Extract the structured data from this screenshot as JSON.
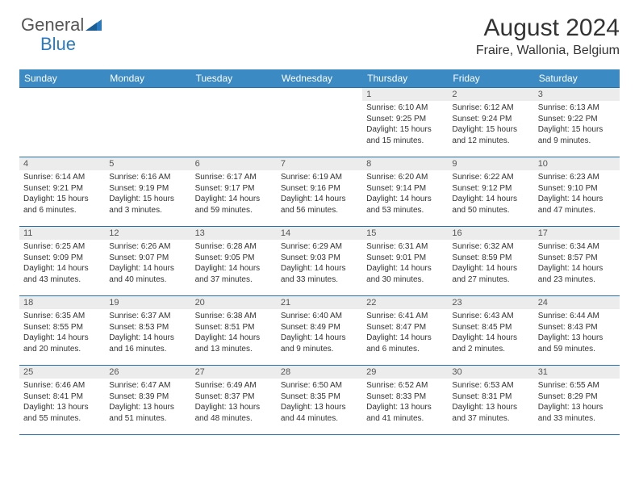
{
  "logo": {
    "part1": "General",
    "part2": "Blue"
  },
  "title": "August 2024",
  "subtitle": "Fraire, Wallonia, Belgium",
  "colors": {
    "header_bg": "#3b8ac4",
    "header_text": "#ffffff",
    "row_border": "#2a6fa8",
    "daynum_bg": "#ececec",
    "logo_gray": "#555555",
    "logo_blue": "#2a7ac0"
  },
  "weekdays": [
    "Sunday",
    "Monday",
    "Tuesday",
    "Wednesday",
    "Thursday",
    "Friday",
    "Saturday"
  ],
  "grid": [
    [
      {
        "empty": true
      },
      {
        "empty": true
      },
      {
        "empty": true
      },
      {
        "empty": true
      },
      {
        "n": "1",
        "sr": "Sunrise: 6:10 AM",
        "ss": "Sunset: 9:25 PM",
        "d1": "Daylight: 15 hours",
        "d2": "and 15 minutes."
      },
      {
        "n": "2",
        "sr": "Sunrise: 6:12 AM",
        "ss": "Sunset: 9:24 PM",
        "d1": "Daylight: 15 hours",
        "d2": "and 12 minutes."
      },
      {
        "n": "3",
        "sr": "Sunrise: 6:13 AM",
        "ss": "Sunset: 9:22 PM",
        "d1": "Daylight: 15 hours",
        "d2": "and 9 minutes."
      }
    ],
    [
      {
        "n": "4",
        "sr": "Sunrise: 6:14 AM",
        "ss": "Sunset: 9:21 PM",
        "d1": "Daylight: 15 hours",
        "d2": "and 6 minutes."
      },
      {
        "n": "5",
        "sr": "Sunrise: 6:16 AM",
        "ss": "Sunset: 9:19 PM",
        "d1": "Daylight: 15 hours",
        "d2": "and 3 minutes."
      },
      {
        "n": "6",
        "sr": "Sunrise: 6:17 AM",
        "ss": "Sunset: 9:17 PM",
        "d1": "Daylight: 14 hours",
        "d2": "and 59 minutes."
      },
      {
        "n": "7",
        "sr": "Sunrise: 6:19 AM",
        "ss": "Sunset: 9:16 PM",
        "d1": "Daylight: 14 hours",
        "d2": "and 56 minutes."
      },
      {
        "n": "8",
        "sr": "Sunrise: 6:20 AM",
        "ss": "Sunset: 9:14 PM",
        "d1": "Daylight: 14 hours",
        "d2": "and 53 minutes."
      },
      {
        "n": "9",
        "sr": "Sunrise: 6:22 AM",
        "ss": "Sunset: 9:12 PM",
        "d1": "Daylight: 14 hours",
        "d2": "and 50 minutes."
      },
      {
        "n": "10",
        "sr": "Sunrise: 6:23 AM",
        "ss": "Sunset: 9:10 PM",
        "d1": "Daylight: 14 hours",
        "d2": "and 47 minutes."
      }
    ],
    [
      {
        "n": "11",
        "sr": "Sunrise: 6:25 AM",
        "ss": "Sunset: 9:09 PM",
        "d1": "Daylight: 14 hours",
        "d2": "and 43 minutes."
      },
      {
        "n": "12",
        "sr": "Sunrise: 6:26 AM",
        "ss": "Sunset: 9:07 PM",
        "d1": "Daylight: 14 hours",
        "d2": "and 40 minutes."
      },
      {
        "n": "13",
        "sr": "Sunrise: 6:28 AM",
        "ss": "Sunset: 9:05 PM",
        "d1": "Daylight: 14 hours",
        "d2": "and 37 minutes."
      },
      {
        "n": "14",
        "sr": "Sunrise: 6:29 AM",
        "ss": "Sunset: 9:03 PM",
        "d1": "Daylight: 14 hours",
        "d2": "and 33 minutes."
      },
      {
        "n": "15",
        "sr": "Sunrise: 6:31 AM",
        "ss": "Sunset: 9:01 PM",
        "d1": "Daylight: 14 hours",
        "d2": "and 30 minutes."
      },
      {
        "n": "16",
        "sr": "Sunrise: 6:32 AM",
        "ss": "Sunset: 8:59 PM",
        "d1": "Daylight: 14 hours",
        "d2": "and 27 minutes."
      },
      {
        "n": "17",
        "sr": "Sunrise: 6:34 AM",
        "ss": "Sunset: 8:57 PM",
        "d1": "Daylight: 14 hours",
        "d2": "and 23 minutes."
      }
    ],
    [
      {
        "n": "18",
        "sr": "Sunrise: 6:35 AM",
        "ss": "Sunset: 8:55 PM",
        "d1": "Daylight: 14 hours",
        "d2": "and 20 minutes."
      },
      {
        "n": "19",
        "sr": "Sunrise: 6:37 AM",
        "ss": "Sunset: 8:53 PM",
        "d1": "Daylight: 14 hours",
        "d2": "and 16 minutes."
      },
      {
        "n": "20",
        "sr": "Sunrise: 6:38 AM",
        "ss": "Sunset: 8:51 PM",
        "d1": "Daylight: 14 hours",
        "d2": "and 13 minutes."
      },
      {
        "n": "21",
        "sr": "Sunrise: 6:40 AM",
        "ss": "Sunset: 8:49 PM",
        "d1": "Daylight: 14 hours",
        "d2": "and 9 minutes."
      },
      {
        "n": "22",
        "sr": "Sunrise: 6:41 AM",
        "ss": "Sunset: 8:47 PM",
        "d1": "Daylight: 14 hours",
        "d2": "and 6 minutes."
      },
      {
        "n": "23",
        "sr": "Sunrise: 6:43 AM",
        "ss": "Sunset: 8:45 PM",
        "d1": "Daylight: 14 hours",
        "d2": "and 2 minutes."
      },
      {
        "n": "24",
        "sr": "Sunrise: 6:44 AM",
        "ss": "Sunset: 8:43 PM",
        "d1": "Daylight: 13 hours",
        "d2": "and 59 minutes."
      }
    ],
    [
      {
        "n": "25",
        "sr": "Sunrise: 6:46 AM",
        "ss": "Sunset: 8:41 PM",
        "d1": "Daylight: 13 hours",
        "d2": "and 55 minutes."
      },
      {
        "n": "26",
        "sr": "Sunrise: 6:47 AM",
        "ss": "Sunset: 8:39 PM",
        "d1": "Daylight: 13 hours",
        "d2": "and 51 minutes."
      },
      {
        "n": "27",
        "sr": "Sunrise: 6:49 AM",
        "ss": "Sunset: 8:37 PM",
        "d1": "Daylight: 13 hours",
        "d2": "and 48 minutes."
      },
      {
        "n": "28",
        "sr": "Sunrise: 6:50 AM",
        "ss": "Sunset: 8:35 PM",
        "d1": "Daylight: 13 hours",
        "d2": "and 44 minutes."
      },
      {
        "n": "29",
        "sr": "Sunrise: 6:52 AM",
        "ss": "Sunset: 8:33 PM",
        "d1": "Daylight: 13 hours",
        "d2": "and 41 minutes."
      },
      {
        "n": "30",
        "sr": "Sunrise: 6:53 AM",
        "ss": "Sunset: 8:31 PM",
        "d1": "Daylight: 13 hours",
        "d2": "and 37 minutes."
      },
      {
        "n": "31",
        "sr": "Sunrise: 6:55 AM",
        "ss": "Sunset: 8:29 PM",
        "d1": "Daylight: 13 hours",
        "d2": "and 33 minutes."
      }
    ]
  ]
}
